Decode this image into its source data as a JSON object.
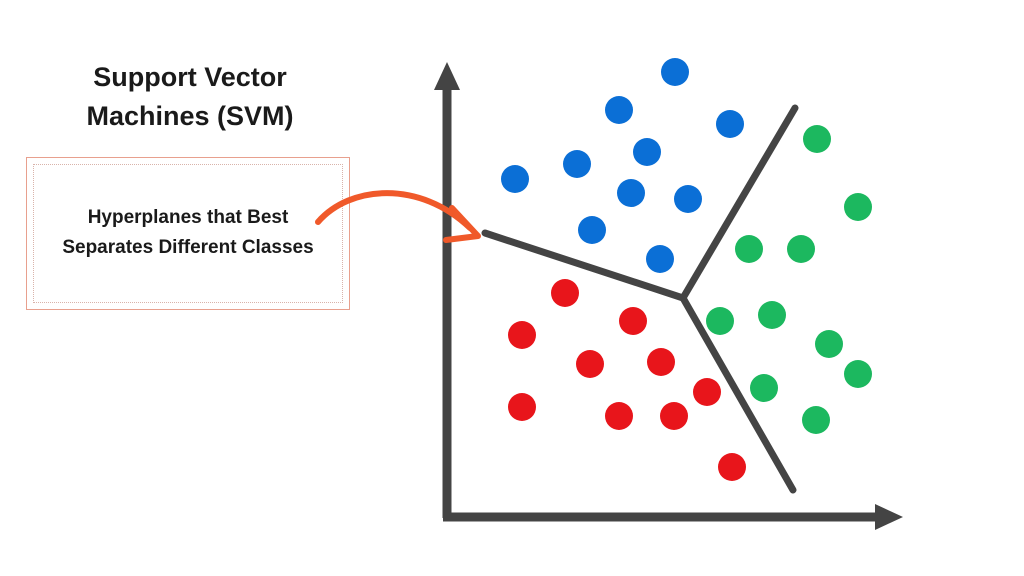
{
  "title": {
    "line1": "Support Vector",
    "line2": "Machines (SVM)"
  },
  "callout": {
    "line1": "Hyperplanes that Best",
    "line2": "Separates Different Classes"
  },
  "colors": {
    "blue_class": "#0b6fd6",
    "green_class": "#1cb85f",
    "red_class": "#e8151b",
    "axes": "#444444",
    "hyperplane": "#444444",
    "arrow": "#f0592a"
  }
}
